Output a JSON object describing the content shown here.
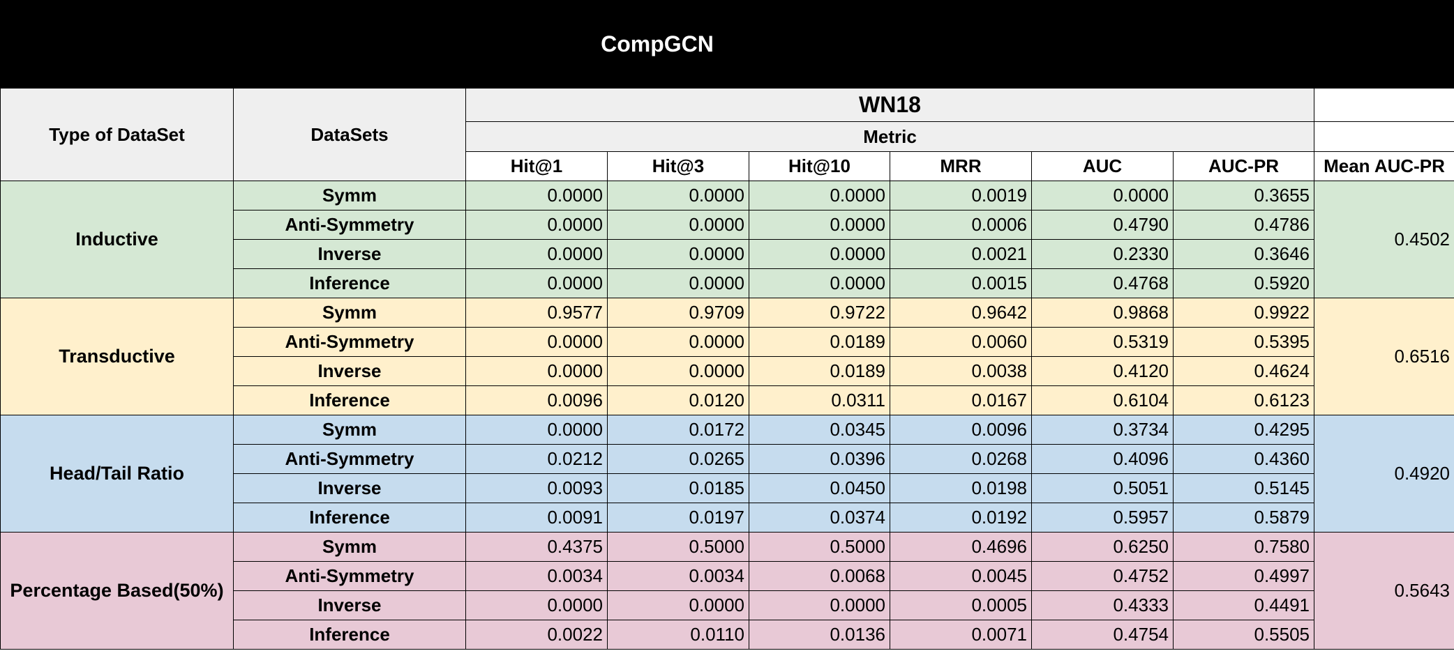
{
  "title": "CompGCN",
  "dataset": "WN18",
  "metric_label": "Metric",
  "headers": {
    "type": "Type of DataSet",
    "datasets": "DataSets",
    "metrics": [
      "Hit@1",
      "Hit@3",
      "Hit@10",
      "MRR",
      "AUC",
      "AUC-PR"
    ],
    "mean": "Mean AUC-PR"
  },
  "colors": {
    "inductive": "#d5e8d4",
    "transductive": "#fff0cc",
    "head_tail": "#c6dcee",
    "percentage": "#e8c9d6"
  },
  "groups": [
    {
      "type": "Inductive",
      "color": "#d5e8d4",
      "mean": "0.4502",
      "rows": [
        {
          "name": "Symm",
          "values": [
            "0.0000",
            "0.0000",
            "0.0000",
            "0.0019",
            "0.0000",
            "0.3655"
          ]
        },
        {
          "name": "Anti-Symmetry",
          "values": [
            "0.0000",
            "0.0000",
            "0.0000",
            "0.0006",
            "0.4790",
            "0.4786"
          ]
        },
        {
          "name": "Inverse",
          "values": [
            "0.0000",
            "0.0000",
            "0.0000",
            "0.0021",
            "0.2330",
            "0.3646"
          ]
        },
        {
          "name": "Inference",
          "values": [
            "0.0000",
            "0.0000",
            "0.0000",
            "0.0015",
            "0.4768",
            "0.5920"
          ]
        }
      ]
    },
    {
      "type": "Transductive",
      "color": "#fff0cc",
      "mean": "0.6516",
      "rows": [
        {
          "name": "Symm",
          "values": [
            "0.9577",
            "0.9709",
            "0.9722",
            "0.9642",
            "0.9868",
            "0.9922"
          ]
        },
        {
          "name": "Anti-Symmetry",
          "values": [
            "0.0000",
            "0.0000",
            "0.0189",
            "0.0060",
            "0.5319",
            "0.5395"
          ]
        },
        {
          "name": "Inverse",
          "values": [
            "0.0000",
            "0.0000",
            "0.0189",
            "0.0038",
            "0.4120",
            "0.4624"
          ]
        },
        {
          "name": "Inference",
          "values": [
            "0.0096",
            "0.0120",
            "0.0311",
            "0.0167",
            "0.6104",
            "0.6123"
          ]
        }
      ]
    },
    {
      "type": "Head/Tail Ratio",
      "color": "#c6dcee",
      "mean": "0.4920",
      "rows": [
        {
          "name": "Symm",
          "values": [
            "0.0000",
            "0.0172",
            "0.0345",
            "0.0096",
            "0.3734",
            "0.4295"
          ]
        },
        {
          "name": "Anti-Symmetry",
          "values": [
            "0.0212",
            "0.0265",
            "0.0396",
            "0.0268",
            "0.4096",
            "0.4360"
          ]
        },
        {
          "name": "Inverse",
          "values": [
            "0.0093",
            "0.0185",
            "0.0450",
            "0.0198",
            "0.5051",
            "0.5145"
          ]
        },
        {
          "name": "Inference",
          "values": [
            "0.0091",
            "0.0197",
            "0.0374",
            "0.0192",
            "0.5957",
            "0.5879"
          ]
        }
      ]
    },
    {
      "type": "Percentage Based(50%)",
      "color": "#e8c9d6",
      "mean": "0.5643",
      "rows": [
        {
          "name": "Symm",
          "values": [
            "0.4375",
            "0.5000",
            "0.5000",
            "0.4696",
            "0.6250",
            "0.7580"
          ]
        },
        {
          "name": "Anti-Symmetry",
          "values": [
            "0.0034",
            "0.0034",
            "0.0068",
            "0.0045",
            "0.4752",
            "0.4997"
          ]
        },
        {
          "name": "Inverse",
          "values": [
            "0.0000",
            "0.0000",
            "0.0000",
            "0.0005",
            "0.4333",
            "0.4491"
          ]
        },
        {
          "name": "Inference",
          "values": [
            "0.0022",
            "0.0110",
            "0.0136",
            "0.0071",
            "0.4754",
            "0.5505"
          ]
        }
      ]
    }
  ]
}
